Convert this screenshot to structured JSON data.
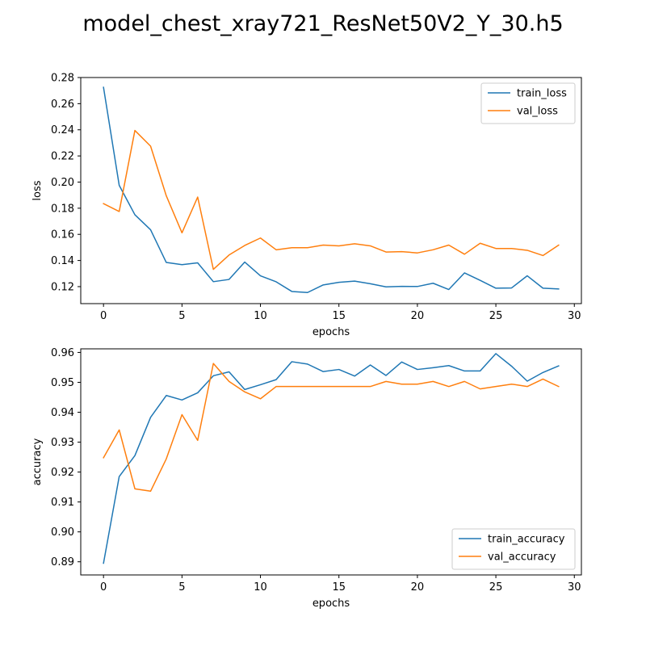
{
  "figure": {
    "title": "model_chest_xray721_ResNet50V2_Y_30.h5"
  },
  "colors": {
    "train": "#1f77b4",
    "val": "#ff7f0e",
    "axes": "#000000",
    "legend_border": "#cccccc"
  },
  "chart_data": [
    {
      "type": "line",
      "title": "",
      "xlabel": "epochs",
      "ylabel": "loss",
      "xlim": [
        -1.45,
        30.45
      ],
      "ylim": [
        0.107,
        0.28
      ],
      "xticks": [
        0,
        5,
        10,
        15,
        20,
        25,
        30
      ],
      "yticks": [
        0.12,
        0.14,
        0.16,
        0.18,
        0.2,
        0.22,
        0.24,
        0.26,
        0.28
      ],
      "ytick_decimals": 2,
      "legend_position": "top-right",
      "grid": false,
      "x": [
        0,
        1,
        2,
        3,
        4,
        5,
        6,
        7,
        8,
        9,
        10,
        11,
        12,
        13,
        14,
        15,
        16,
        17,
        18,
        19,
        20,
        21,
        22,
        23,
        24,
        25,
        26,
        27,
        28,
        29
      ],
      "series": [
        {
          "name": "train_loss",
          "color_key": "train",
          "values": [
            0.2725,
            0.1975,
            0.175,
            0.1635,
            0.1385,
            0.1368,
            0.1382,
            0.1238,
            0.1255,
            0.1388,
            0.1283,
            0.1237,
            0.1163,
            0.1155,
            0.1213,
            0.1233,
            0.1242,
            0.1222,
            0.1198,
            0.1202,
            0.1201,
            0.1226,
            0.1178,
            0.1305,
            0.1248,
            0.1188,
            0.119,
            0.1283,
            0.1188,
            0.1182
          ]
        },
        {
          "name": "val_loss",
          "color_key": "val",
          "values": [
            0.1835,
            0.1775,
            0.2395,
            0.2275,
            0.1895,
            0.1612,
            0.1885,
            0.1332,
            0.1442,
            0.1515,
            0.1572,
            0.1482,
            0.1498,
            0.1498,
            0.1518,
            0.1512,
            0.1528,
            0.1512,
            0.1465,
            0.1468,
            0.1458,
            0.1482,
            0.1518,
            0.1448,
            0.1532,
            0.1492,
            0.1492,
            0.1478,
            0.1438,
            0.1518
          ]
        }
      ]
    },
    {
      "type": "line",
      "title": "",
      "xlabel": "epochs",
      "ylabel": "accuracy",
      "xlim": [
        -1.45,
        30.45
      ],
      "ylim": [
        0.8856,
        0.9612
      ],
      "xticks": [
        0,
        5,
        10,
        15,
        20,
        25,
        30
      ],
      "yticks": [
        0.89,
        0.9,
        0.91,
        0.92,
        0.93,
        0.94,
        0.95,
        0.96
      ],
      "ytick_decimals": 2,
      "legend_position": "bottom-right",
      "grid": false,
      "x": [
        0,
        1,
        2,
        3,
        4,
        5,
        6,
        7,
        8,
        9,
        10,
        11,
        12,
        13,
        14,
        15,
        16,
        17,
        18,
        19,
        20,
        21,
        22,
        23,
        24,
        25,
        26,
        27,
        28,
        29
      ],
      "series": [
        {
          "name": "train_accuracy",
          "color_key": "train",
          "values": [
            0.8895,
            0.9185,
            0.9255,
            0.9383,
            0.9456,
            0.9441,
            0.9465,
            0.9522,
            0.9535,
            0.9476,
            0.9492,
            0.9509,
            0.9569,
            0.9561,
            0.9536,
            0.9543,
            0.9521,
            0.9558,
            0.9523,
            0.9568,
            0.9543,
            0.9549,
            0.9556,
            0.9538,
            0.9538,
            0.9596,
            0.9554,
            0.9504,
            0.9533,
            0.9555
          ]
        },
        {
          "name": "val_accuracy",
          "color_key": "val",
          "values": [
            0.9248,
            0.9341,
            0.9144,
            0.9136,
            0.9244,
            0.9392,
            0.9306,
            0.9563,
            0.9503,
            0.9468,
            0.9445,
            0.9486,
            0.9486,
            0.9486,
            0.9486,
            0.9486,
            0.9486,
            0.9486,
            0.9503,
            0.9494,
            0.9494,
            0.9503,
            0.9486,
            0.9503,
            0.9478,
            0.9486,
            0.9494,
            0.9486,
            0.9511,
            0.9486
          ]
        }
      ]
    }
  ]
}
